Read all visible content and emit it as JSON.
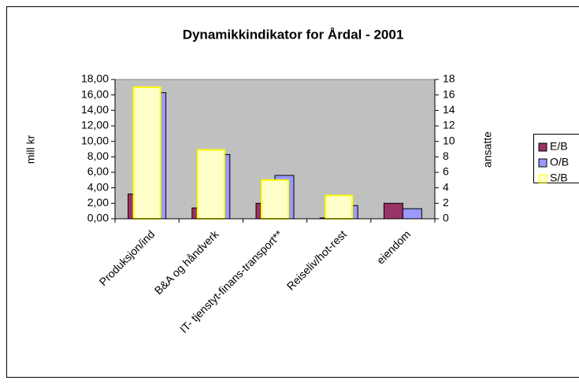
{
  "chart_data": {
    "type": "bar",
    "title": "Dynamikkindikator for Årdal - 2001",
    "ylabel": "mill kr",
    "y2label": "ansatte",
    "categories": [
      "Produksjon/ind",
      "B&A og håndverk",
      "IT- tjenstyt-finans-transport**",
      "Reiseliv/hot-rest",
      "eiendom"
    ],
    "series": [
      {
        "name": "E/B",
        "color": "#993366",
        "values": [
          3.2,
          1.4,
          2.0,
          0.1,
          2.0
        ]
      },
      {
        "name": "O/B",
        "color": "#9999ff",
        "values": [
          16.3,
          8.3,
          5.6,
          1.7,
          1.3
        ]
      },
      {
        "name": "S/B",
        "color": "#ffffcc",
        "axis": "y2",
        "values": [
          17,
          8.9,
          5.0,
          3.0,
          null
        ]
      }
    ],
    "ylim": [
      0,
      18
    ],
    "yticks": [
      {
        "value": 0,
        "label": "0,00"
      },
      {
        "value": 2,
        "label": "2,00"
      },
      {
        "value": 4,
        "label": "4,00"
      },
      {
        "value": 6,
        "label": "6,00"
      },
      {
        "value": 8,
        "label": "8,00"
      },
      {
        "value": 10,
        "label": "10,00"
      },
      {
        "value": 12,
        "label": "12,00"
      },
      {
        "value": 14,
        "label": "14,00"
      },
      {
        "value": 16,
        "label": "16,00"
      },
      {
        "value": 18,
        "label": "18,00"
      }
    ],
    "y2lim": [
      0,
      18
    ],
    "y2ticks": [
      0,
      2,
      4,
      6,
      8,
      10,
      12,
      14,
      16,
      18
    ],
    "legend": "right"
  }
}
